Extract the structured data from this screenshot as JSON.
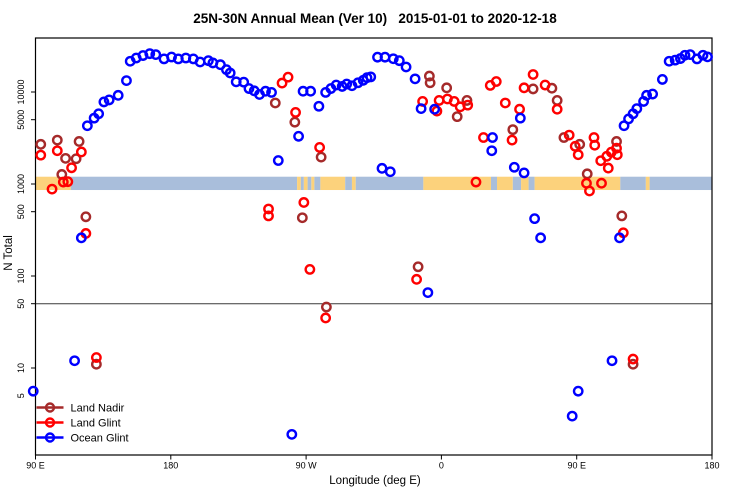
{
  "title": "25N-30N Annual Mean (Ver 10)   2015-01-01 to 2020-12-18",
  "x_axis": {
    "label": "Longitude (deg E)",
    "ticks": [
      {
        "lon": 90,
        "label": "90 E"
      },
      {
        "lon": 180,
        "label": "180"
      },
      {
        "lon": 270,
        "label": "90 W"
      },
      {
        "lon": 360,
        "label": "0"
      },
      {
        "lon": 450,
        "label": "90 E"
      },
      {
        "lon": 540,
        "label": "180"
      }
    ],
    "range_plot_coords": [
      90,
      540
    ]
  },
  "y_axis": {
    "label": "N Total",
    "scale": "log10",
    "ticks": [
      5,
      10,
      50,
      100,
      500,
      1000,
      5000,
      10000
    ],
    "range": [
      1.1,
      38000
    ]
  },
  "reference_line": {
    "value": 50,
    "color": "#3a3a3a"
  },
  "colors": {
    "land_nadir": "#A52A2A",
    "land_glint": "#FF0000",
    "ocean_glint": "#0000FF",
    "band_ocean": "#A9BEDB",
    "band_land": "#FCD27C",
    "frame": "#000000"
  },
  "legend": {
    "items": [
      {
        "label": "Land Nadir",
        "color": "#A52A2A"
      },
      {
        "label": "Land Glint",
        "color": "#FF0000"
      },
      {
        "label": "Ocean Glint",
        "color": "#0000FF"
      }
    ]
  },
  "chart_data": {
    "type": "scatter",
    "x_unit": "longitude plotted 90..540 degE (wraps 90E-180-90W-0-90E-180)",
    "y_unit": "N Total (log scale)",
    "grid": false,
    "legend_position": "bottom-left-inside",
    "land_ocean_strip": {
      "description": "land/ocean map band centered at N=1000",
      "value_range": [
        860,
        1200
      ],
      "segments": [
        {
          "from": 90,
          "to": 113.5,
          "surface": "land"
        },
        {
          "from": 113.5,
          "to": 264,
          "surface": "ocean"
        },
        {
          "from": 264,
          "to": 266.5,
          "surface": "land"
        },
        {
          "from": 266.5,
          "to": 268.5,
          "surface": "ocean"
        },
        {
          "from": 268.5,
          "to": 271,
          "surface": "land"
        },
        {
          "from": 271,
          "to": 273.5,
          "surface": "ocean"
        },
        {
          "from": 273.5,
          "to": 275.5,
          "surface": "land"
        },
        {
          "from": 275.5,
          "to": 279.5,
          "surface": "ocean"
        },
        {
          "from": 279.5,
          "to": 296,
          "surface": "land"
        },
        {
          "from": 296,
          "to": 300.5,
          "surface": "ocean"
        },
        {
          "from": 300.5,
          "to": 303,
          "surface": "land"
        },
        {
          "from": 303,
          "to": 348,
          "surface": "ocean"
        },
        {
          "from": 348,
          "to": 393,
          "surface": "land"
        },
        {
          "from": 393,
          "to": 397,
          "surface": "ocean"
        },
        {
          "from": 397,
          "to": 407.5,
          "surface": "land"
        },
        {
          "from": 407.5,
          "to": 413,
          "surface": "ocean"
        },
        {
          "from": 413,
          "to": 418,
          "surface": "land"
        },
        {
          "from": 418,
          "to": 422,
          "surface": "ocean"
        },
        {
          "from": 422,
          "to": 479,
          "surface": "land"
        },
        {
          "from": 479,
          "to": 496,
          "surface": "ocean"
        },
        {
          "from": 496,
          "to": 498.5,
          "surface": "land"
        },
        {
          "from": 498.5,
          "to": 540,
          "surface": "ocean"
        }
      ]
    },
    "series": [
      {
        "name": "Land Nadir",
        "color": "#A52A2A",
        "points": [
          [
            93.5,
            2700
          ],
          [
            104.5,
            3000
          ],
          [
            107.5,
            1270
          ],
          [
            110,
            1900
          ],
          [
            117,
            1880
          ],
          [
            119,
            2900
          ],
          [
            123.5,
            440
          ],
          [
            130.5,
            11
          ],
          [
            249.5,
            7600
          ],
          [
            262.5,
            4700
          ],
          [
            267.5,
            430
          ],
          [
            280,
            1960
          ],
          [
            283.5,
            46
          ],
          [
            344.5,
            126
          ],
          [
            352,
            14900
          ],
          [
            352.5,
            12600
          ],
          [
            363.5,
            11100
          ],
          [
            370.5,
            5400
          ],
          [
            377,
            8100
          ],
          [
            407.5,
            3900
          ],
          [
            421,
            10800
          ],
          [
            433.5,
            11000
          ],
          [
            437,
            8100
          ],
          [
            441.5,
            3200
          ],
          [
            452,
            2700
          ],
          [
            457,
            1290
          ],
          [
            476.5,
            2900
          ],
          [
            480,
            450
          ],
          [
            487.5,
            11
          ]
        ]
      },
      {
        "name": "Land Glint",
        "color": "#FF0000",
        "points": [
          [
            93.5,
            2060
          ],
          [
            101,
            880
          ],
          [
            104.5,
            2300
          ],
          [
            108.5,
            1050
          ],
          [
            111.5,
            1060
          ],
          [
            114,
            1500
          ],
          [
            120.5,
            2230
          ],
          [
            123.5,
            290
          ],
          [
            130.5,
            13
          ],
          [
            245,
            535
          ],
          [
            245,
            450
          ],
          [
            254,
            12500
          ],
          [
            258,
            14500
          ],
          [
            263,
            6000
          ],
          [
            268.5,
            630
          ],
          [
            272.5,
            118
          ],
          [
            279,
            2500
          ],
          [
            283,
            35
          ],
          [
            343.5,
            92
          ],
          [
            347.5,
            7900
          ],
          [
            357,
            6200
          ],
          [
            358.5,
            8100
          ],
          [
            364,
            8400
          ],
          [
            368.5,
            7900
          ],
          [
            372.5,
            6900
          ],
          [
            377.5,
            7200
          ],
          [
            383,
            1050
          ],
          [
            388,
            3200
          ],
          [
            392.5,
            11800
          ],
          [
            396.5,
            13000
          ],
          [
            402.5,
            7600
          ],
          [
            407,
            3000
          ],
          [
            412,
            6500
          ],
          [
            415,
            11100
          ],
          [
            421,
            15500
          ],
          [
            429,
            11900
          ],
          [
            437,
            6500
          ],
          [
            445,
            3400
          ],
          [
            449,
            2570
          ],
          [
            451,
            2080
          ],
          [
            456.5,
            1020
          ],
          [
            458.5,
            840
          ],
          [
            461.5,
            3200
          ],
          [
            462,
            2640
          ],
          [
            466,
            1790
          ],
          [
            466.5,
            1020
          ],
          [
            470,
            2000
          ],
          [
            471,
            1490
          ],
          [
            473,
            2220
          ],
          [
            476.5,
            2450
          ],
          [
            477,
            2080
          ],
          [
            481,
            295
          ],
          [
            487.5,
            12.5
          ]
        ]
      },
      {
        "name": "Ocean Glint",
        "color": "#0000FF",
        "points": [
          [
            88.5,
            5.6
          ],
          [
            116,
            12
          ],
          [
            120.5,
            260
          ],
          [
            124.5,
            4300
          ],
          [
            129,
            5200
          ],
          [
            132,
            5800
          ],
          [
            135.5,
            7800
          ],
          [
            139,
            8200
          ],
          [
            145,
            9200
          ],
          [
            150.5,
            13300
          ],
          [
            153,
            21600
          ],
          [
            157,
            23400
          ],
          [
            161.5,
            24900
          ],
          [
            166,
            26100
          ],
          [
            170,
            25500
          ],
          [
            175.5,
            22900
          ],
          [
            180.5,
            24000
          ],
          [
            185,
            22900
          ],
          [
            190,
            23400
          ],
          [
            195,
            22900
          ],
          [
            199.5,
            21200
          ],
          [
            205,
            21900
          ],
          [
            208,
            20700
          ],
          [
            213,
            19800
          ],
          [
            217,
            17500
          ],
          [
            219.5,
            16100
          ],
          [
            223.5,
            12900
          ],
          [
            228.5,
            12800
          ],
          [
            232,
            10900
          ],
          [
            235.5,
            10300
          ],
          [
            239,
            9400
          ],
          [
            243,
            10200
          ],
          [
            247,
            9900
          ],
          [
            251.5,
            1800
          ],
          [
            260.5,
            1.9
          ],
          [
            265,
            3300
          ],
          [
            268,
            10200
          ],
          [
            273,
            10200
          ],
          [
            278.5,
            7000
          ],
          [
            283,
            9900
          ],
          [
            286.5,
            10900
          ],
          [
            290,
            11900
          ],
          [
            294,
            11500
          ],
          [
            297,
            12200
          ],
          [
            300.5,
            11700
          ],
          [
            304.5,
            12600
          ],
          [
            308,
            13400
          ],
          [
            310.5,
            14300
          ],
          [
            313,
            14600
          ],
          [
            317.5,
            23900
          ],
          [
            320.5,
            1480
          ],
          [
            322.5,
            23900
          ],
          [
            326,
            1360
          ],
          [
            328,
            23000
          ],
          [
            332,
            21900
          ],
          [
            336.5,
            18700
          ],
          [
            342.5,
            13900
          ],
          [
            346.5,
            6600
          ],
          [
            351,
            66
          ],
          [
            355.5,
            6500
          ],
          [
            393.5,
            2300
          ],
          [
            394,
            3200
          ],
          [
            408.5,
            1520
          ],
          [
            412.5,
            5200
          ],
          [
            415,
            1320
          ],
          [
            422,
            420
          ],
          [
            426,
            260
          ],
          [
            447,
            3
          ],
          [
            451,
            5.6
          ],
          [
            473.5,
            12
          ],
          [
            478.5,
            260
          ],
          [
            481.5,
            4300
          ],
          [
            484.5,
            5100
          ],
          [
            487.5,
            5800
          ],
          [
            490,
            6600
          ],
          [
            494.5,
            7900
          ],
          [
            496.5,
            9200
          ],
          [
            500.5,
            9500
          ],
          [
            507,
            13700
          ],
          [
            511.5,
            21600
          ],
          [
            515.5,
            22200
          ],
          [
            519,
            23100
          ],
          [
            522,
            25100
          ],
          [
            525.5,
            25500
          ],
          [
            530,
            22900
          ],
          [
            534,
            25100
          ],
          [
            537,
            24100
          ]
        ]
      }
    ]
  }
}
